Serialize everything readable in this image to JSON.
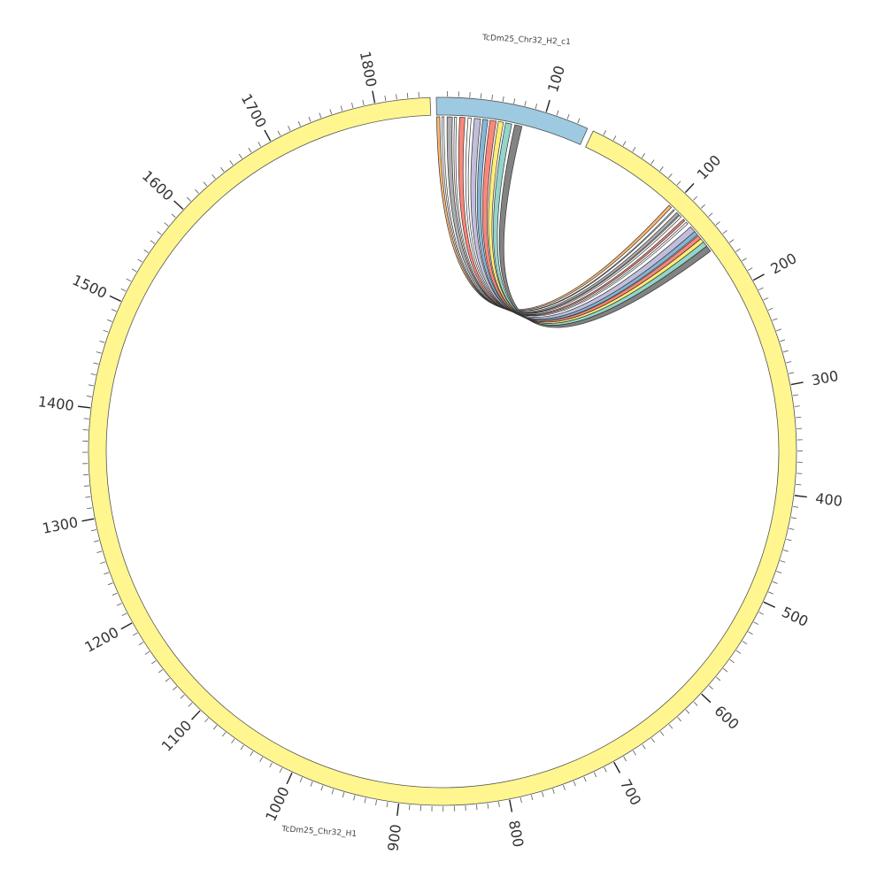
{
  "sequences": [
    {
      "name": "TcDm25_Chr32_H2_c1",
      "length": 140,
      "color": "#9ecae1",
      "tick_labels": [
        "100"
      ]
    },
    {
      "name": "TcDm25_Chr32_H1",
      "length": 1850,
      "color": "#fff68f",
      "tick_labels": [
        "100",
        "200",
        "300",
        "400",
        "500",
        "600",
        "700",
        "800",
        "900",
        "1000",
        "1100",
        "1200",
        "1300",
        "1400",
        "1500",
        "1600",
        "1700",
        "1800"
      ]
    }
  ],
  "chart_data": {
    "type": "chord",
    "tick_interval": 100,
    "minor_tick_interval": 10,
    "links": [
      {
        "source": [
          0,
          3
        ],
        "target": [
          100,
          97
        ],
        "color": "#fdb46c"
      },
      {
        "source": [
          5,
          7
        ],
        "target": [
          104,
          103
        ],
        "color": "#ffffff"
      },
      {
        "source": [
          10,
          15
        ],
        "target": [
          110,
          107
        ],
        "color": "#a9a9a9"
      },
      {
        "source": [
          17,
          19
        ],
        "target": [
          113,
          111
        ],
        "color": "#ffffff"
      },
      {
        "source": [
          22,
          27
        ],
        "target": [
          118,
          116
        ],
        "color": "#fb8072"
      },
      {
        "source": [
          30,
          33
        ],
        "target": [
          122,
          120
        ],
        "color": "#ffffff"
      },
      {
        "source": [
          36,
          42
        ],
        "target": [
          132,
          126
        ],
        "color": "#bebada"
      },
      {
        "source": [
          44,
          49
        ],
        "target": [
          136,
          132
        ],
        "color": "#80b1d3"
      },
      {
        "source": [
          51,
          57
        ],
        "target": [
          141,
          137
        ],
        "color": "#fb8072"
      },
      {
        "source": [
          59,
          64
        ],
        "target": [
          145,
          141
        ],
        "color": "#ffed6f"
      },
      {
        "source": [
          66,
          72
        ],
        "target": [
          150,
          145
        ],
        "color": "#8dd3c7"
      },
      {
        "source": [
          75,
          82
        ],
        "target": [
          156,
          150
        ],
        "color": "#7c7c7c"
      }
    ]
  }
}
